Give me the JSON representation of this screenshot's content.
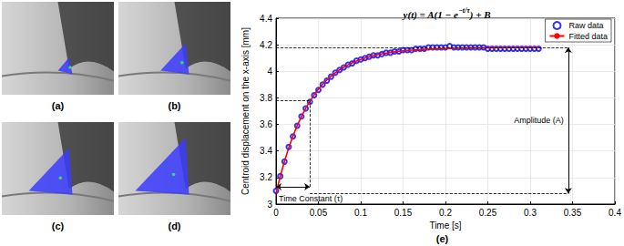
{
  "figure": {
    "panel_labels": [
      "(a)",
      "(b)",
      "(c)",
      "(d)"
    ]
  },
  "chart_data": {
    "type": "scatter",
    "panel_label": "(e)",
    "title": "y(t) = A(1 − e−t/τ) + B",
    "title_superscript": "−t/τ",
    "x_label": "Time [s]",
    "y_label": "Centroid displacement on the x-axis [mm]",
    "x": [
      0,
      0.005,
      0.01,
      0.015,
      0.02,
      0.025,
      0.03,
      0.035,
      0.04,
      0.045,
      0.05,
      0.055,
      0.06,
      0.065,
      0.07,
      0.075,
      0.08,
      0.085,
      0.09,
      0.095,
      0.1,
      0.105,
      0.11,
      0.115,
      0.12,
      0.125,
      0.13,
      0.135,
      0.14,
      0.145,
      0.15,
      0.155,
      0.16,
      0.165,
      0.17,
      0.175,
      0.18,
      0.185,
      0.19,
      0.195,
      0.2,
      0.205,
      0.21,
      0.215,
      0.22,
      0.225,
      0.23,
      0.235,
      0.24,
      0.245,
      0.25,
      0.255,
      0.26,
      0.265,
      0.27,
      0.275,
      0.28,
      0.285,
      0.29,
      0.295,
      0.3,
      0.305,
      0.31
    ],
    "series": [
      {
        "name": "Raw data",
        "type": "scatter",
        "color": "#0000ff",
        "marker": "circle",
        "values": [
          3.1,
          3.21,
          3.32,
          3.43,
          3.51,
          3.59,
          3.66,
          3.72,
          3.77,
          3.82,
          3.86,
          3.9,
          3.93,
          3.96,
          3.99,
          4.01,
          4.03,
          4.05,
          4.06,
          4.08,
          4.09,
          4.1,
          4.11,
          4.12,
          4.12,
          4.13,
          4.14,
          4.14,
          4.15,
          4.15,
          4.16,
          4.16,
          4.16,
          4.17,
          4.17,
          4.17,
          4.18,
          4.18,
          4.18,
          4.18,
          4.18,
          4.19,
          4.18,
          4.18,
          4.18,
          4.18,
          4.18,
          4.18,
          4.18,
          4.18,
          4.17,
          4.17,
          4.17,
          4.17,
          4.17,
          4.17,
          4.17,
          4.17,
          4.17,
          4.17,
          4.17,
          4.17,
          4.17
        ]
      },
      {
        "name": "Fitted data",
        "type": "line",
        "color": "#ff0000",
        "line_style": "solid",
        "values": [
          3.08,
          3.209,
          3.323,
          3.424,
          3.513,
          3.591,
          3.66,
          3.721,
          3.775,
          3.823,
          3.865,
          3.902,
          3.935,
          3.963,
          3.989,
          4.011,
          4.031,
          4.049,
          4.064,
          4.078,
          4.09,
          4.1,
          4.11,
          4.118,
          4.125,
          4.132,
          4.137,
          4.142,
          4.147,
          4.151,
          4.154,
          4.157,
          4.16,
          4.162,
          4.164,
          4.166,
          4.168,
          4.169,
          4.17,
          4.171,
          4.172,
          4.173,
          4.174,
          4.175,
          4.175,
          4.176,
          4.176,
          4.177,
          4.177,
          4.177,
          4.178,
          4.178,
          4.178,
          4.178,
          4.179,
          4.179,
          4.179,
          4.179,
          4.179,
          4.179,
          4.179,
          4.18,
          4.18
        ]
      }
    ],
    "xlim": [
      0,
      0.4
    ],
    "xticks": [
      0,
      0.05,
      0.1,
      0.15,
      0.2,
      0.25,
      0.3,
      0.35,
      0.4
    ],
    "ylim": [
      3,
      4.4
    ],
    "yticks": [
      3,
      3.2,
      3.4,
      3.6,
      3.8,
      4,
      4.2,
      4.4
    ],
    "grid": true,
    "legend": "upper right",
    "guides": [
      {
        "x": [
          0,
          0.345
        ],
        "y": [
          4.18,
          4.18
        ]
      },
      {
        "x": [
          0,
          0.04
        ],
        "y": [
          3.78,
          3.78
        ]
      },
      {
        "x": [
          0.04,
          0.04
        ],
        "y": [
          3.13,
          3.78
        ]
      },
      {
        "x": [
          0.04,
          0.345
        ],
        "y": [
          3.08,
          3.08
        ]
      }
    ],
    "annotations": [
      {
        "text": "Amplitude (A)",
        "x": [
          0.345,
          0.345
        ],
        "y": [
          3.08,
          4.18
        ]
      },
      {
        "text": "Time Constant (τ)",
        "x": [
          0,
          0.04
        ],
        "y": [
          3.13,
          3.13
        ]
      }
    ]
  }
}
